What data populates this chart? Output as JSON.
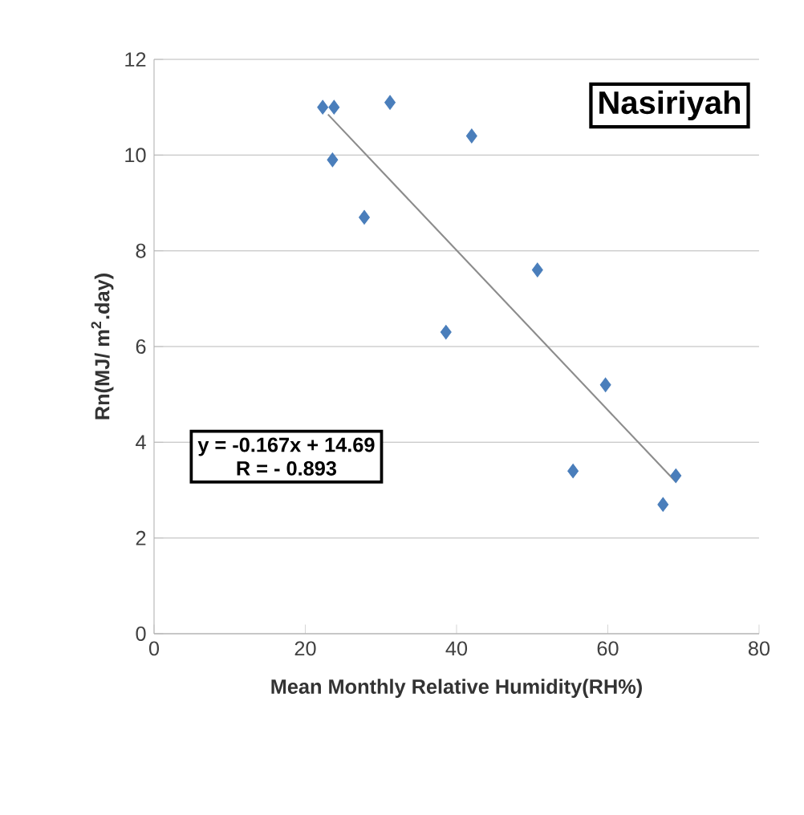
{
  "chart_data": {
    "type": "scatter",
    "title": "Nasiriyah",
    "xlabel": "Mean Monthly Relative Humidity(RH%)",
    "ylabel": "Rn(MJ/ m$^{2}$.day)",
    "annotations": [
      "y = -0.167x + 14.69",
      "R = - 0.893"
    ],
    "series": [
      {
        "color": "#4a7ebb",
        "marker": "diamond",
        "x": [
          22.3,
          23.8,
          23.6,
          27.8,
          31.2,
          42.0,
          38.6,
          50.7,
          59.7,
          55.4,
          67.3,
          69.0
        ],
        "values": [
          11.0,
          11.0,
          9.9,
          8.7,
          11.1,
          10.4,
          6.3,
          7.6,
          5.2,
          3.4,
          2.7,
          3.3
        ]
      },
      {
        "type": "line",
        "color": "#8c8c8c",
        "marker": "none",
        "x": [
          23,
          69
        ],
        "values": [
          10.85,
          3.17
        ]
      }
    ],
    "xlim": [
      0,
      80
    ],
    "xticks": [
      0,
      20,
      40,
      60,
      80
    ],
    "ylim": [
      0,
      12
    ],
    "yticks": [
      0,
      2,
      4,
      6,
      8,
      10,
      12
    ],
    "grid": "y"
  }
}
